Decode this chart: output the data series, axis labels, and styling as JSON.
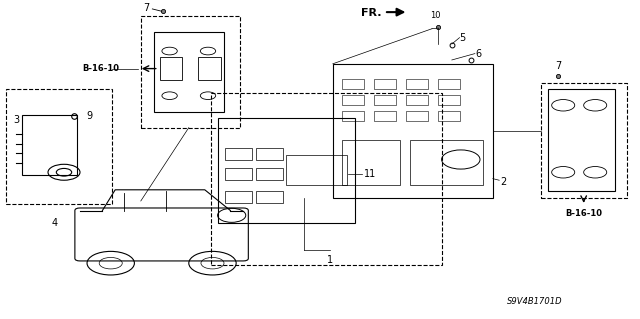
{
  "bg_color": "#ffffff",
  "line_color": "#000000",
  "fig_width": 6.4,
  "fig_height": 3.19,
  "diagram_code": "S9V4B1701D",
  "fr_label": "FR.",
  "b1610_left_text": "B-16-10",
  "b1610_right_text": "B-16-10"
}
